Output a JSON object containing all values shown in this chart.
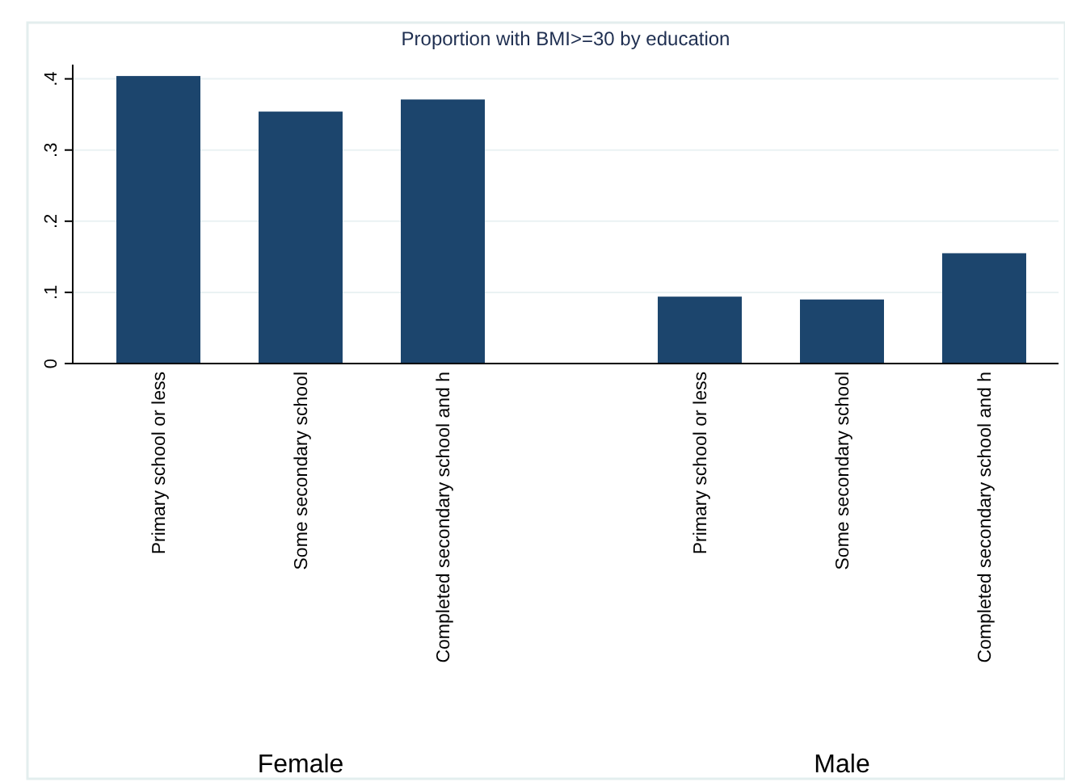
{
  "chart_data": {
    "type": "bar",
    "title": "Proportion with BMI>=30  by education",
    "categories": [
      "Primary school or less",
      "Some secondary school",
      "Completed secondary school and h",
      "Primary school or less",
      "Some secondary school",
      "Completed secondary school and h"
    ],
    "values": [
      0.404,
      0.354,
      0.371,
      0.094,
      0.09,
      0.155
    ],
    "color": "#1c456d",
    "ylim": [
      0,
      0.42
    ],
    "yticks": [
      0,
      {
        "value": 0.1,
        "label": ".1"
      },
      {
        "value": 0.2,
        "label": ".2"
      },
      {
        "value": 0.3,
        "label": ".3"
      },
      {
        "value": 0.4,
        "label": ".4"
      }
    ],
    "grid": "y",
    "annotations": [
      "Female",
      "Male"
    ]
  }
}
